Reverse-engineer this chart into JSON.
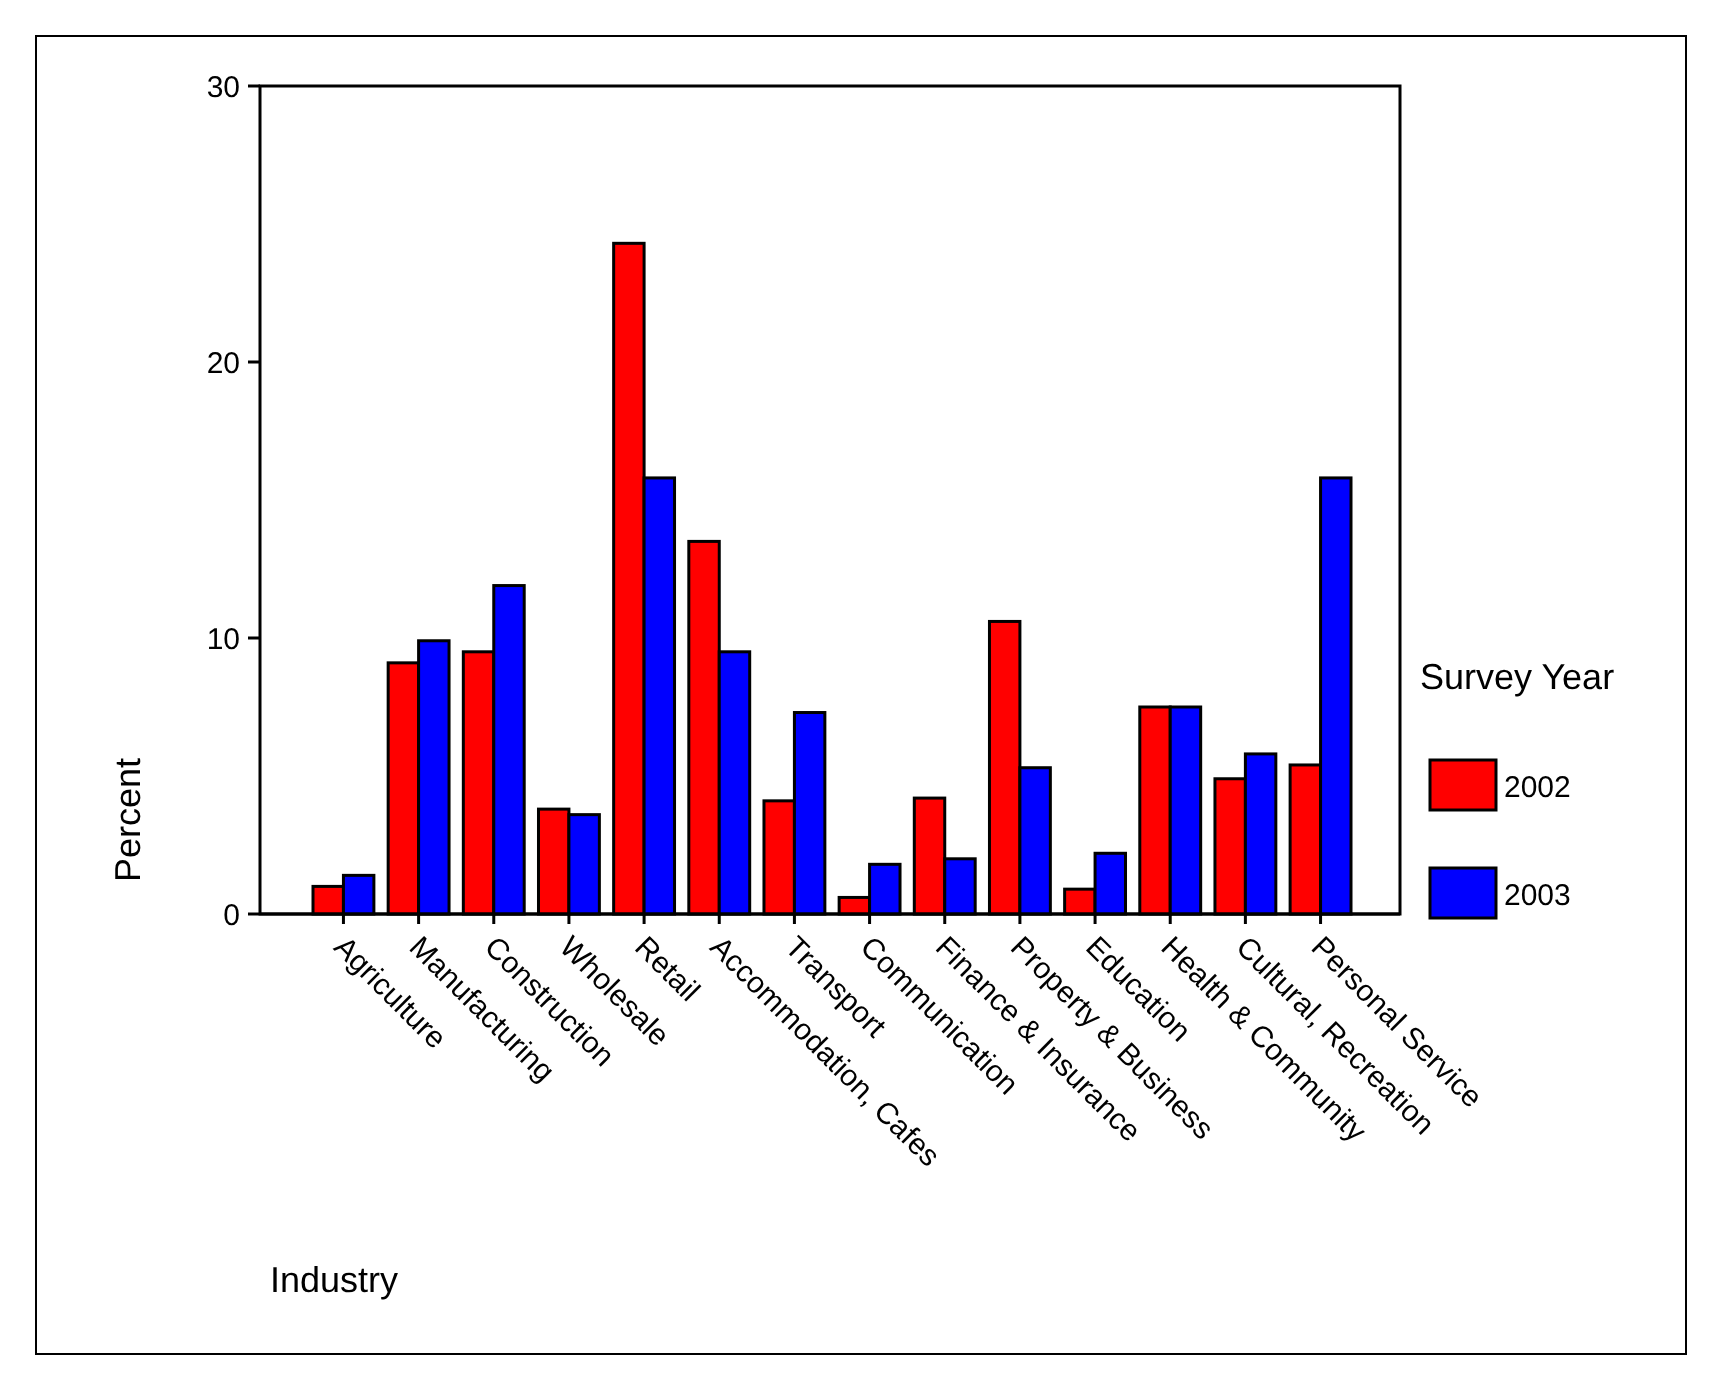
{
  "chart_data": {
    "type": "bar",
    "xlabel": "Industry",
    "ylabel": "Percent",
    "legend_title": "Survey Year",
    "legend": "right",
    "ylim": [
      0,
      30
    ],
    "yticks": [
      0,
      10,
      20,
      30
    ],
    "categories": [
      "Agriculture",
      "Manufacturing",
      "Construction",
      "Wholesale",
      "Retail",
      "Accommodation, Cafes",
      "Transport",
      "Communication",
      "Finance & Insurance",
      "Property & Business",
      "Education",
      "Health & Community",
      "Cultural, Recreation",
      "Personal Service"
    ],
    "series": [
      {
        "name": "2002",
        "color": "#ff0000",
        "values": [
          1.0,
          9.1,
          9.5,
          3.8,
          24.3,
          13.5,
          4.1,
          0.6,
          4.2,
          10.6,
          0.9,
          7.5,
          4.9,
          5.4
        ]
      },
      {
        "name": "2003",
        "color": "#0000ff",
        "values": [
          1.4,
          9.9,
          11.9,
          3.6,
          15.8,
          9.5,
          7.3,
          1.8,
          2.0,
          5.3,
          2.2,
          7.5,
          5.8,
          15.8
        ]
      }
    ]
  }
}
